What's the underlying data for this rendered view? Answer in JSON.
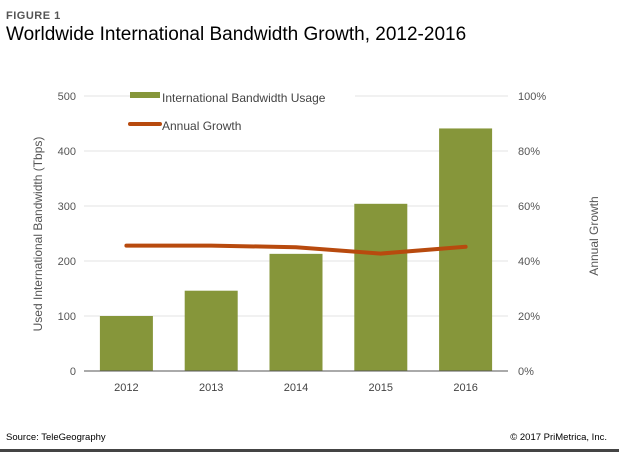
{
  "figure_label": "FIGURE 1",
  "title": "Worldwide International Bandwidth Growth, 2012-2016",
  "source": "Source: TeleGeography",
  "copyright": "© 2017 PriMetrica, Inc.",
  "chart_data": {
    "type": "bar",
    "title": "Worldwide International Bandwidth Growth, 2012-2016",
    "categories": [
      "2012",
      "2013",
      "2014",
      "2015",
      "2016"
    ],
    "series": [
      {
        "name": "International Bandwidth Usage",
        "type": "bar",
        "axis": "left",
        "color": "#86963a",
        "values": [
          100,
          146,
          213,
          304,
          441
        ]
      },
      {
        "name": "Annual Growth",
        "type": "line",
        "axis": "right",
        "color": "#b84a0e",
        "values": [
          45.6,
          45.6,
          45,
          42.7,
          45.2
        ]
      }
    ],
    "ylabel": "Used International Bandwidth (Tbps)",
    "y2label": "Annual Growth",
    "ylim": [
      0,
      500
    ],
    "y2lim": [
      0,
      100
    ],
    "yticks": [
      "0",
      "100",
      "200",
      "300",
      "400",
      "500"
    ],
    "y2ticks": [
      "0%",
      "20%",
      "40%",
      "60%",
      "80%",
      "100%"
    ],
    "grid": true,
    "legend": "top-left"
  }
}
